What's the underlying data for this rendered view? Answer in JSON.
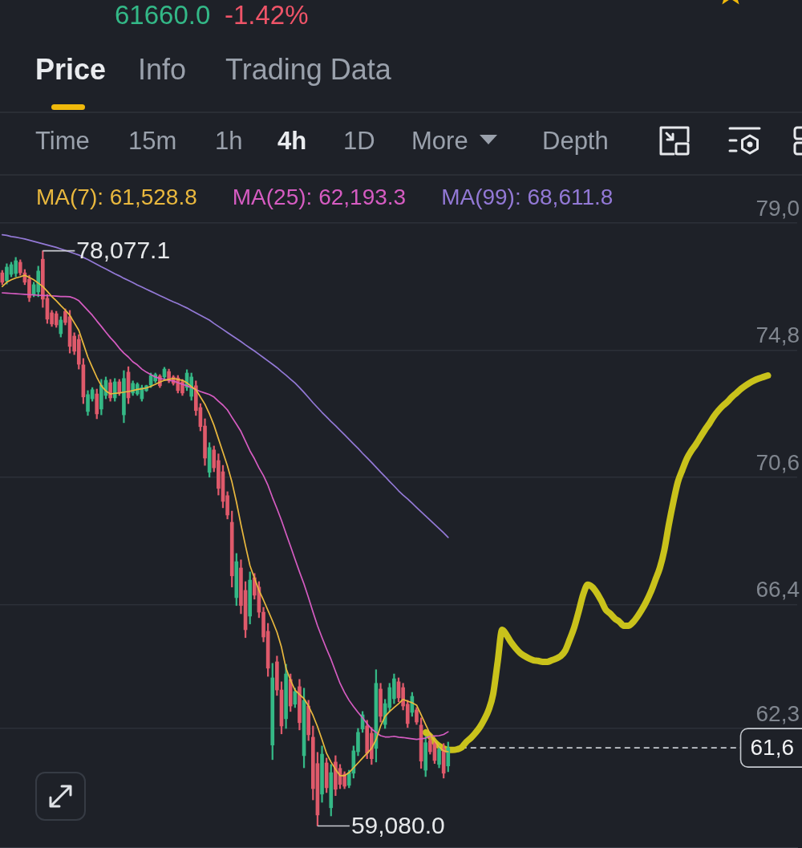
{
  "chart_data": {
    "type": "candlestick",
    "annotations": [
      "61660.0",
      "-1.42%",
      "Price",
      "Info",
      "Trading Data",
      "Time",
      "15m",
      "1h",
      "4h",
      "1D",
      "More",
      "Depth",
      "78,077.1",
      "59,080.0",
      "61,6"
    ],
    "categories": [
      null,
      null,
      null,
      null,
      null,
      null,
      null,
      null,
      null,
      null,
      null,
      null,
      null,
      null,
      null,
      null,
      null,
      null,
      null,
      null,
      null,
      null,
      null,
      null,
      null,
      null,
      null,
      null,
      null,
      null,
      null,
      null,
      null,
      null,
      null,
      null,
      null,
      null,
      null,
      null,
      null,
      null,
      null,
      null,
      null,
      null,
      null,
      null,
      null,
      null,
      null,
      null,
      null,
      null,
      null,
      null,
      null,
      null,
      null,
      null,
      null,
      null,
      null,
      null,
      null,
      null,
      null,
      null,
      null,
      null,
      null,
      null,
      null,
      null,
      null,
      null,
      null,
      null,
      null,
      null,
      null,
      null,
      null,
      null,
      null,
      null,
      null,
      null,
      null,
      null,
      null,
      null,
      null,
      null,
      null,
      null,
      null,
      null,
      null,
      null,
      null,
      null,
      null,
      null,
      null,
      null,
      null,
      null,
      null,
      null,
      null,
      null,
      null,
      null,
      null,
      null,
      null,
      null,
      null,
      null,
      null,
      null,
      null,
      null,
      null,
      null,
      null,
      null,
      null,
      null,
      null,
      null,
      null,
      null,
      null,
      null,
      null,
      null,
      null,
      null,
      null,
      null,
      null,
      null,
      null,
      null,
      null,
      null,
      null,
      null,
      null,
      null,
      null,
      null,
      null,
      null,
      null,
      null,
      null,
      null,
      null,
      null,
      null,
      null,
      null,
      null,
      null,
      null,
      null,
      null,
      null,
      null,
      null,
      null,
      null,
      null,
      null
    ],
    "ohlc": [
      [
        77.35,
        77.43,
        76.96,
        77.04
      ],
      [
        77.09,
        77.65,
        76.98,
        77.54
      ],
      [
        77.3,
        77.7,
        77.22,
        77.62
      ],
      [
        77.33,
        77.86,
        77.22,
        77.75
      ],
      [
        77.7,
        77.78,
        77.27,
        77.35
      ],
      [
        77.35,
        77.46,
        76.96,
        77.04
      ],
      [
        77.14,
        77.27,
        76.4,
        76.53
      ],
      [
        76.64,
        77.04,
        76.56,
        76.96
      ],
      [
        76.72,
        77.57,
        76.56,
        77.41
      ],
      [
        77.8,
        78.0771,
        76.21,
        76.48
      ],
      [
        76.51,
        76.64,
        75.68,
        75.82
      ],
      [
        76.03,
        76.11,
        75.58,
        75.66
      ],
      [
        76,
        76.08,
        75.55,
        75.63
      ],
      [
        75.34,
        75.9,
        75.23,
        75.79
      ],
      [
        76.08,
        76.16,
        75.63,
        75.71
      ],
      [
        75.9,
        76.11,
        74.7,
        74.92
      ],
      [
        75.26,
        75.37,
        74.65,
        74.76
      ],
      [
        75.15,
        75.31,
        74.17,
        74.33
      ],
      [
        74.31,
        74.52,
        73.03,
        73.25
      ],
      [
        72.77,
        73.46,
        72.64,
        73.33
      ],
      [
        73.19,
        73.56,
        73.11,
        73.49
      ],
      [
        73.35,
        73.51,
        72.53,
        72.69
      ],
      [
        72.85,
        73.83,
        72.66,
        73.64
      ],
      [
        73.3,
        73.91,
        73.19,
        73.8
      ],
      [
        73.72,
        73.83,
        73.11,
        73.22
      ],
      [
        73.22,
        73.86,
        73.11,
        73.75
      ],
      [
        73.75,
        73.83,
        73.3,
        73.38
      ],
      [
        72.66,
        74.12,
        72.4,
        73.86
      ],
      [
        74.07,
        74.25,
        73.03,
        73.22
      ],
      [
        73.38,
        73.78,
        73.3,
        73.7
      ],
      [
        73.35,
        73.72,
        73.3,
        73.67
      ],
      [
        73.19,
        73.64,
        73.11,
        73.56
      ],
      [
        73.46,
        73.64,
        73.43,
        73.62
      ],
      [
        73.64,
        74.04,
        73.56,
        73.96
      ],
      [
        73.78,
        74.04,
        73.72,
        73.99
      ],
      [
        73.94,
        73.99,
        73.56,
        73.62
      ],
      [
        73.91,
        74.23,
        73.86,
        74.17
      ],
      [
        74.09,
        74.17,
        73.72,
        73.8
      ],
      [
        73.91,
        73.96,
        73.64,
        73.7
      ],
      [
        73.88,
        73.96,
        73.38,
        73.46
      ],
      [
        73.75,
        73.83,
        73.3,
        73.38
      ],
      [
        73.56,
        74.15,
        73.46,
        74.04
      ],
      [
        73.27,
        74.04,
        73.14,
        73.91
      ],
      [
        73.62,
        73.78,
        72.64,
        72.8
      ],
      [
        72.9,
        73.03,
        72.13,
        72.27
      ],
      [
        72.29,
        72.53,
        70.99,
        71.23
      ],
      [
        70.76,
        71.74,
        70.6,
        71.58
      ],
      [
        71.5,
        71.63,
        70.78,
        70.91
      ],
      [
        71.15,
        71.37,
        70.01,
        70.23
      ],
      [
        70.78,
        70.99,
        69.59,
        69.8
      ],
      [
        69.99,
        70.12,
        69.22,
        69.35
      ],
      [
        69.11,
        69.48,
        66.97,
        67.34
      ],
      [
        66.62,
        68.08,
        66.36,
        67.81
      ],
      [
        67.6,
        67.87,
        66.09,
        66.36
      ],
      [
        66.86,
        67.15,
        65.3,
        65.56
      ],
      [
        66.01,
        67.47,
        65.75,
        67.2
      ],
      [
        67.28,
        67.42,
        66.57,
        66.7
      ],
      [
        66.97,
        67.15,
        65.96,
        66.14
      ],
      [
        66.14,
        66.3,
        65.16,
        65.32
      ],
      [
        65.51,
        65.77,
        64.02,
        64.29
      ],
      [
        61.75,
        64.45,
        61.27,
        63.97
      ],
      [
        64.5,
        64.69,
        63.39,
        63.57
      ],
      [
        63.57,
        63.84,
        62.12,
        62.38
      ],
      [
        62.62,
        64.42,
        62.3,
        64.1
      ],
      [
        63.92,
        64.1,
        62.86,
        63.04
      ],
      [
        63.1,
        63.63,
        62.99,
        63.52
      ],
      [
        63.68,
        63.92,
        62.25,
        62.49
      ],
      [
        61.4,
        63.63,
        61,
        63.23
      ],
      [
        63.04,
        63.23,
        61.9,
        62.09
      ],
      [
        62.01,
        62.38,
        59.94,
        60.31
      ],
      [
        61.14,
        61.51,
        59.08,
        59.44
      ],
      [
        60.13,
        61.72,
        59.86,
        61.45
      ],
      [
        61.16,
        61.32,
        60.18,
        60.34
      ],
      [
        59.68,
        61.11,
        59.41,
        60.84
      ],
      [
        61.19,
        61.4,
        60.08,
        60.29
      ],
      [
        60.98,
        61.11,
        60.31,
        60.45
      ],
      [
        60.79,
        60.87,
        60.31,
        60.39
      ],
      [
        60.42,
        60.92,
        60.34,
        60.84
      ],
      [
        60.82,
        61.72,
        60.66,
        61.56
      ],
      [
        61.53,
        62.3,
        61.4,
        62.17
      ],
      [
        62.28,
        62.86,
        62.17,
        62.75
      ],
      [
        62.38,
        62.57,
        61.3,
        61.48
      ],
      [
        62.14,
        62.33,
        61.11,
        61.3
      ],
      [
        61.64,
        64.24,
        61.19,
        63.79
      ],
      [
        63.6,
        63.79,
        62.51,
        62.7
      ],
      [
        62.43,
        63.26,
        62.3,
        63.12
      ],
      [
        62.99,
        63.79,
        62.86,
        63.65
      ],
      [
        63.28,
        64.1,
        63.12,
        63.94
      ],
      [
        63.84,
        63.97,
        63.18,
        63.31
      ],
      [
        63.65,
        63.79,
        62.91,
        63.04
      ],
      [
        63.1,
        63.23,
        62.33,
        62.46
      ],
      [
        62.83,
        63.49,
        62.7,
        63.36
      ],
      [
        62.91,
        62.99,
        62.43,
        62.51
      ],
      [
        62.41,
        62.65,
        60.98,
        61.22
      ],
      [
        60.92,
        62.04,
        60.71,
        61.83
      ],
      [
        61.9,
        61.98,
        61.45,
        61.53
      ],
      [
        61.8,
        61.9,
        61.14,
        61.24
      ],
      [
        61.11,
        61.72,
        61,
        61.61
      ],
      [
        61.64,
        61.8,
        60.66,
        60.82
      ],
      [
        61.06,
        61.85,
        60.87,
        61.66
      ],
      null,
      null,
      null,
      null,
      null,
      null,
      null,
      null,
      null,
      null,
      null,
      null,
      null,
      null,
      null,
      null,
      null,
      null,
      null,
      null,
      null,
      null,
      null,
      null,
      null,
      null,
      null,
      null,
      null,
      null,
      null,
      null,
      null,
      null,
      null,
      null,
      null,
      null,
      null,
      null,
      null,
      null,
      null,
      null,
      null,
      null,
      null,
      null,
      null,
      null,
      null,
      null,
      null,
      null,
      null,
      null,
      null,
      null,
      null,
      null,
      null,
      null,
      null,
      null,
      null,
      null,
      null,
      null,
      null,
      null,
      null,
      null,
      null,
      null,
      null,
      null,
      null
    ],
    "series": [
      {
        "name": "MA(7): 61,528.8",
        "type": "line",
        "color": "#e9b83e",
        "values": [
          76.9,
          77.04,
          77.12,
          77.18,
          77.22,
          77.27,
          77.2,
          77.12,
          77.01,
          76.9,
          76.74,
          76.57,
          76.43,
          76.27,
          76.12,
          75.95,
          75.7,
          75.45,
          75.01,
          74.57,
          74.23,
          73.9,
          73.62,
          73.45,
          73.35,
          73.37,
          73.38,
          73.41,
          73.43,
          73.46,
          73.5,
          73.52,
          73.55,
          73.6,
          73.67,
          73.74,
          73.8,
          73.83,
          73.86,
          73.83,
          73.8,
          73.72,
          73.59,
          73.49,
          73.25,
          73.01,
          72.69,
          72.32,
          71.87,
          71.42,
          70.97,
          70.44,
          69.78,
          69.03,
          68.34,
          67.68,
          67.26,
          66.86,
          66.54,
          66.2,
          65.85,
          65.48,
          64.98,
          64.29,
          63.89,
          63.57,
          63.42,
          63.28,
          63.04,
          62.73,
          62.36,
          61.93,
          61.48,
          61.19,
          60.95,
          60.74,
          60.74,
          60.84,
          61,
          61.16,
          61.32,
          61.48,
          61.64,
          61.93,
          62.38,
          62.7,
          62.86,
          62.99,
          63.12,
          63.26,
          63.2,
          63.15,
          63.07,
          62.75,
          62.43,
          62.12,
          61.88,
          61.69,
          61.56,
          61.53,
          null,
          null,
          null,
          null,
          null,
          null,
          null,
          null,
          null,
          null,
          null,
          null,
          null,
          null,
          null,
          null,
          null,
          null,
          null,
          null,
          null,
          null,
          null,
          null,
          null,
          null,
          null,
          null,
          null,
          null,
          null,
          null,
          null,
          null,
          null,
          null,
          null,
          null,
          null,
          null,
          null,
          null,
          null,
          null,
          null,
          null,
          null,
          null,
          null,
          null,
          null,
          null,
          null,
          null,
          null,
          null,
          null,
          null,
          null,
          null,
          null,
          null,
          null,
          null,
          null,
          null,
          null,
          null,
          null,
          null,
          null,
          null,
          null,
          null,
          null,
          null,
          null
        ]
      },
      {
        "name": "MA(25): 62,193.3",
        "type": "line",
        "color": "#d65cc2",
        "values": [
          76.69,
          76.68,
          76.67,
          76.66,
          76.65,
          76.64,
          76.63,
          76.62,
          76.61,
          76.6,
          76.6,
          76.59,
          76.58,
          76.57,
          76.57,
          76.56,
          76.51,
          76.43,
          76.27,
          76.11,
          75.95,
          75.76,
          75.58,
          75.39,
          75.21,
          75.05,
          74.86,
          74.7,
          74.57,
          74.41,
          74.31,
          74.17,
          74.07,
          73.99,
          73.91,
          73.86,
          73.83,
          73.8,
          73.78,
          73.72,
          73.67,
          73.62,
          73.56,
          73.49,
          73.43,
          73.38,
          73.33,
          73.25,
          73.11,
          72.98,
          72.82,
          72.58,
          72.35,
          72.11,
          71.79,
          71.47,
          71.21,
          70.91,
          70.65,
          70.33,
          69.93,
          69.56,
          69.17,
          68.74,
          68.32,
          67.89,
          67.47,
          67.07,
          66.62,
          66.14,
          65.69,
          65.3,
          64.93,
          64.58,
          64.18,
          63.79,
          63.49,
          63.23,
          63.02,
          62.83,
          62.65,
          62.46,
          62.28,
          62.17,
          62.06,
          62.02,
          62.02,
          62.04,
          62.01,
          62,
          61.98,
          61.96,
          61.94,
          61.96,
          61.98,
          62.04,
          62.05,
          62.06,
          62.1,
          62.19,
          null,
          null,
          null,
          null,
          null,
          null,
          null,
          null,
          null,
          null,
          null,
          null,
          null,
          null,
          null,
          null,
          null,
          null,
          null,
          null,
          null,
          null,
          null,
          null,
          null,
          null,
          null,
          null,
          null,
          null,
          null,
          null,
          null,
          null,
          null,
          null,
          null,
          null,
          null,
          null,
          null,
          null,
          null,
          null,
          null,
          null,
          null,
          null,
          null,
          null,
          null,
          null,
          null,
          null,
          null,
          null,
          null,
          null,
          null,
          null,
          null,
          null,
          null,
          null,
          null,
          null,
          null,
          null,
          null,
          null,
          null,
          null,
          null,
          null,
          null,
          null,
          null
        ]
      },
      {
        "name": "MA(99): 68,611.8",
        "type": "line",
        "color": "#9379d6",
        "values": [
          78.61,
          78.59,
          78.55,
          78.53,
          78.5,
          78.47,
          78.43,
          78.39,
          78.35,
          78.31,
          78.27,
          78.23,
          78.19,
          78.14,
          78.09,
          78.04,
          77.99,
          77.94,
          77.86,
          77.79,
          77.71,
          77.63,
          77.55,
          77.48,
          77.4,
          77.32,
          77.25,
          77.17,
          77.1,
          77.03,
          76.95,
          76.88,
          76.81,
          76.74,
          76.67,
          76.6,
          76.53,
          76.46,
          76.39,
          76.33,
          76.26,
          76.19,
          76.11,
          76.03,
          75.95,
          75.87,
          75.79,
          75.68,
          75.58,
          75.48,
          75.38,
          75.28,
          75.18,
          75.08,
          74.97,
          74.87,
          74.77,
          74.66,
          74.55,
          74.44,
          74.33,
          74.22,
          74.09,
          73.97,
          73.84,
          73.71,
          73.56,
          73.4,
          73.23,
          73.06,
          72.9,
          72.74,
          72.59,
          72.44,
          72.3,
          72.15,
          72,
          71.85,
          71.7,
          71.55,
          71.39,
          71.24,
          71.09,
          70.93,
          70.77,
          70.62,
          70.46,
          70.31,
          70.15,
          70.01,
          69.88,
          69.74,
          69.6,
          69.46,
          69.32,
          69.18,
          69.04,
          68.9,
          68.76,
          68.61,
          null,
          null,
          null,
          null,
          null,
          null,
          null,
          null,
          null,
          null,
          null,
          null,
          null,
          null,
          null,
          null,
          null,
          null,
          null,
          null,
          null,
          null,
          null,
          null,
          null,
          null,
          null,
          null,
          null,
          null,
          null,
          null,
          null,
          null,
          null,
          null,
          null,
          null,
          null,
          null,
          null,
          null,
          null,
          null,
          null,
          null,
          null,
          null,
          null,
          null,
          null,
          null,
          null,
          null,
          null,
          null,
          null,
          null,
          null,
          null,
          null,
          null,
          null,
          null,
          null,
          null,
          null,
          null,
          null,
          null,
          null,
          null,
          null,
          null,
          null,
          null,
          null
        ]
      },
      {
        "type": "line",
        "color": "#c9c21b",
        "values": [
          null,
          null,
          null,
          null,
          null,
          null,
          null,
          null,
          null,
          null,
          null,
          null,
          null,
          null,
          null,
          null,
          null,
          null,
          null,
          null,
          null,
          null,
          null,
          null,
          null,
          null,
          null,
          null,
          null,
          null,
          null,
          null,
          null,
          null,
          null,
          null,
          null,
          null,
          null,
          null,
          null,
          null,
          null,
          null,
          null,
          null,
          null,
          null,
          null,
          null,
          null,
          null,
          null,
          null,
          null,
          null,
          null,
          null,
          null,
          null,
          null,
          null,
          null,
          null,
          null,
          null,
          null,
          null,
          null,
          null,
          null,
          null,
          null,
          null,
          null,
          null,
          null,
          null,
          null,
          null,
          null,
          null,
          null,
          null,
          null,
          null,
          null,
          null,
          null,
          null,
          null,
          null,
          null,
          null,
          62.17,
          62.04,
          61.85,
          61.72,
          61.64,
          61.59,
          61.59,
          61.61,
          61.67,
          61.85,
          61.98,
          62.14,
          62.33,
          62.59,
          62.91,
          63.44,
          64.5,
          65.56,
          65.38,
          65.14,
          64.95,
          64.79,
          64.69,
          64.61,
          64.55,
          64.53,
          64.5,
          64.5,
          64.55,
          64.61,
          64.69,
          64.87,
          65.24,
          65.64,
          66.17,
          66.73,
          67.05,
          66.97,
          66.78,
          66.52,
          66.22,
          66.09,
          65.93,
          65.83,
          65.69,
          65.69,
          65.8,
          65.99,
          66.22,
          66.49,
          66.81,
          67.2,
          67.6,
          68.19,
          69.03,
          69.78,
          70.44,
          70.84,
          71.21,
          71.47,
          71.68,
          71.92,
          72.16,
          72.37,
          72.61,
          72.8,
          72.96,
          73.09,
          73.25,
          73.38,
          73.51,
          73.62,
          73.72,
          73.8,
          73.86,
          73.91,
          73.96,
          null,
          null,
          null,
          null,
          null,
          null
        ]
      }
    ],
    "ylim": [
      58.35,
      80.48
    ],
    "yticks": [
      {
        "value": 79.0,
        "label": "79,0"
      },
      {
        "value": 74.8,
        "label": "74,8"
      },
      {
        "value": 70.6,
        "label": "70,6"
      },
      {
        "value": 66.4,
        "label": "66,4"
      },
      {
        "value": 62.3,
        "label": "62,3"
      }
    ],
    "ref_lines": [
      {
        "axis": "y",
        "value": 61.66,
        "line_style": "dashed",
        "color": "#c5c9cf"
      }
    ],
    "grid": "y",
    "tick_labels": "y"
  }
}
